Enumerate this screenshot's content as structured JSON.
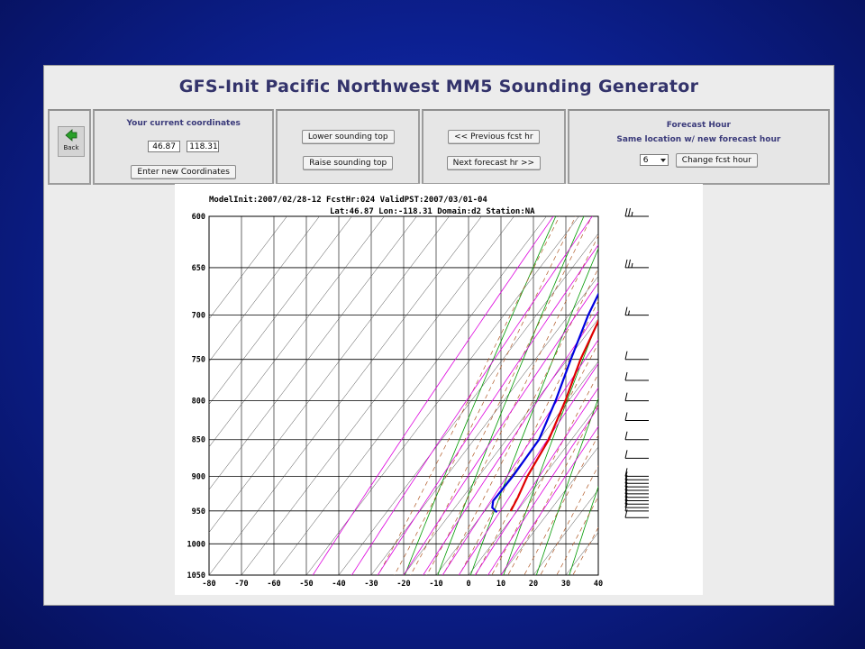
{
  "app": {
    "title": "GFS-Init Pacific Northwest MM5 Sounding Generator"
  },
  "toolbar": {
    "back_label": "Back",
    "coords": {
      "heading": "Your current coordinates",
      "lat_value": "46.87",
      "lon_value": "118.31",
      "enter_button": "Enter new Coordinates"
    },
    "sounding": {
      "lower_button": "Lower sounding top",
      "raise_button": "Raise sounding top"
    },
    "fcst_nav": {
      "prev_button": "<< Previous fcst hr",
      "next_button": "Next forecast hr >>"
    },
    "forecast_hour": {
      "heading": "Forecast Hour",
      "subheading": "Same location w/ new forecast hour",
      "selected": "6",
      "change_button": "Change fcst hour"
    }
  },
  "chart_data": {
    "type": "line",
    "title": "ModelInit:2007/02/28-12 FcstHr:024 ValidPST:2007/03/01-04",
    "subtitle": "Lat:46.87 Lon:-118.31 Domain:d2 Station:NA",
    "xlabel": "",
    "ylabel": "",
    "x_ticks": [
      -80,
      -70,
      -60,
      -50,
      -40,
      -30,
      -20,
      -10,
      0,
      10,
      20,
      30,
      40
    ],
    "y_ticks": [
      600,
      650,
      700,
      750,
      800,
      850,
      900,
      950,
      1000,
      1050
    ],
    "xlim": [
      -80,
      40
    ],
    "ylim": [
      1050,
      600
    ],
    "y_scale": "log",
    "skew": true,
    "colors": {
      "temperature": "#e00000",
      "dewpoint": "#0000e0",
      "isotherm": "#000000",
      "dry_adiabat": "#009900",
      "moist_adiabat": "#b05a28",
      "mixing_ratio": "#dd00dd"
    },
    "series": [
      {
        "name": "temperature",
        "points": [
          [
            600,
            -31
          ],
          [
            650,
            -25
          ],
          [
            700,
            -20
          ],
          [
            750,
            -16
          ],
          [
            800,
            -11
          ],
          [
            850,
            -7
          ],
          [
            900,
            -5
          ],
          [
            930,
            -3
          ],
          [
            950,
            -2
          ]
        ]
      },
      {
        "name": "dewpoint",
        "points": [
          [
            600,
            -31
          ],
          [
            650,
            -28
          ],
          [
            700,
            -24
          ],
          [
            750,
            -19
          ],
          [
            800,
            -14
          ],
          [
            850,
            -10
          ],
          [
            900,
            -9.5
          ],
          [
            935,
            -9.8
          ],
          [
            945,
            -8.5
          ],
          [
            952,
            -6
          ]
        ]
      }
    ],
    "wind_barbs": [
      {
        "p": 600,
        "barbs": 2.5
      },
      {
        "p": 650,
        "barbs": 2.5
      },
      {
        "p": 700,
        "barbs": 1.5
      },
      {
        "p": 750,
        "barbs": 1
      },
      {
        "p": 775,
        "barbs": 1
      },
      {
        "p": 800,
        "barbs": 1
      },
      {
        "p": 825,
        "barbs": 1
      },
      {
        "p": 850,
        "barbs": 1
      },
      {
        "p": 875,
        "barbs": 1
      },
      {
        "p": 900,
        "barbs": 1
      },
      {
        "p": 905,
        "barbs": 1
      },
      {
        "p": 910,
        "barbs": 1
      },
      {
        "p": 915,
        "barbs": 1
      },
      {
        "p": 920,
        "barbs": 1
      },
      {
        "p": 925,
        "barbs": 1
      },
      {
        "p": 930,
        "barbs": 1
      },
      {
        "p": 935,
        "barbs": 1
      },
      {
        "p": 940,
        "barbs": 1
      },
      {
        "p": 945,
        "barbs": 1
      },
      {
        "p": 950,
        "barbs": 1
      },
      {
        "p": 960,
        "barbs": 1
      }
    ]
  }
}
